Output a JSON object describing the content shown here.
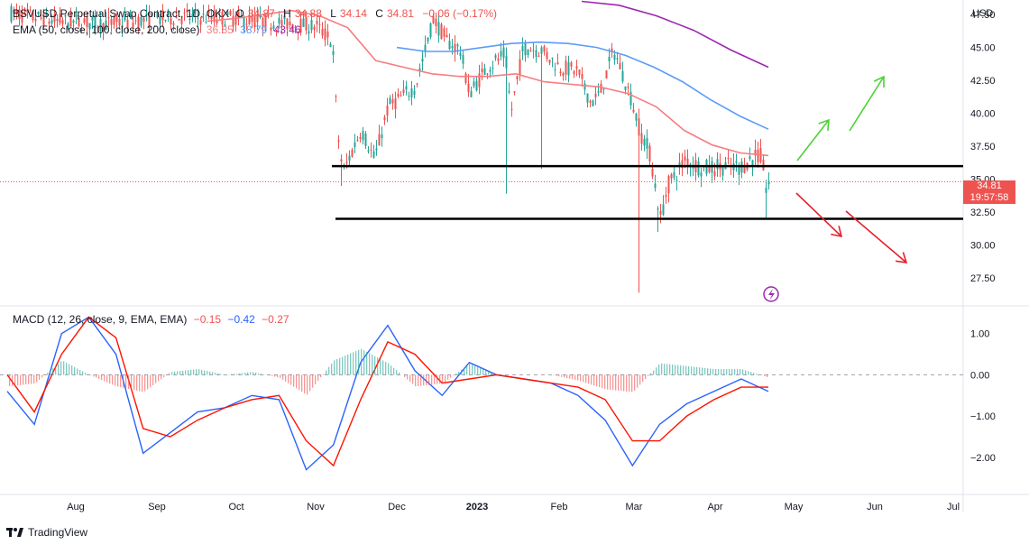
{
  "legend": {
    "symbol": "BSVUSD Perpetual Swap Contract, 1D, OKX",
    "ohlc": {
      "o_label": "O",
      "o": "34.87",
      "h_label": "H",
      "h": "34.88",
      "l_label": "L",
      "l": "34.14",
      "c_label": "C",
      "c": "34.81",
      "change": "−0.06 (−0.17%)"
    },
    "ema_label": "EMA (50, close, 100, close, 200, close)",
    "ema_values": [
      "36.85",
      "38.79",
      "43.46"
    ]
  },
  "macd": {
    "label": "MACD (12, 26, close, 9, EMA, EMA)",
    "values": [
      "−0.15",
      "−0.42",
      "−0.27"
    ]
  },
  "price_tag": {
    "price": "34.81",
    "countdown": "19:57:58"
  },
  "branding": "TradingView",
  "colors": {
    "up": "#26a69a",
    "down": "#ef5350",
    "ema50": "#f77c80",
    "ema100": "#5b9cf6",
    "ema200": "#9c27b0",
    "macd": "#2962ff",
    "signal": "#ff1100",
    "support": "#000000",
    "arrow_up": "#4cd137",
    "arrow_down": "#e6202a"
  },
  "chart_data": [
    {
      "type": "candlestick",
      "y_axis": {
        "unit": "USD",
        "range": [
          25.6,
          48.6
        ],
        "ticks": [
          27.5,
          30,
          32.5,
          35,
          37.5,
          40,
          42.5,
          45,
          47.5
        ],
        "tick_labels": [
          "27.50",
          "30.00",
          "32.50",
          "35.00",
          "37.50",
          "40.00",
          "42.50",
          "45.00",
          "47.50"
        ]
      },
      "x_axis": {
        "labels": [
          "Aug",
          "Sep",
          "Oct",
          "Nov",
          "Dec",
          "2023",
          "Feb",
          "Mar",
          "Apr",
          "May",
          "Jun",
          "Jul"
        ]
      },
      "series": [
        {
          "name": "EMA 50",
          "values": [
            47.0,
            47.2,
            47.5,
            47.8,
            47.4,
            46.5,
            44.0,
            43.5,
            43.0,
            42.8,
            42.8,
            43.0,
            42.4,
            42.2,
            42.0,
            41.5,
            40.5,
            38.7,
            37.6,
            37.0,
            36.8
          ]
        },
        {
          "name": "EMA 100",
          "values": [
            null,
            null,
            null,
            null,
            null,
            null,
            null,
            45.0,
            44.7,
            44.7,
            45.0,
            45.3,
            45.4,
            45.3,
            45.0,
            44.4,
            43.5,
            42.4,
            41.0,
            39.8,
            38.8
          ]
        },
        {
          "name": "EMA 200",
          "values": [
            null,
            null,
            null,
            null,
            null,
            null,
            null,
            null,
            null,
            null,
            null,
            null,
            null,
            null,
            null,
            48.5,
            48.2,
            47.4,
            46.3,
            44.8,
            43.5
          ]
        }
      ],
      "support_levels": [
        36.0,
        32.0
      ],
      "last_price": 34.81
    },
    {
      "type": "macd",
      "y_axis": {
        "range": [
          -2.9,
          1.65
        ],
        "ticks": [
          1.0,
          0.0,
          -1.0,
          -2.0
        ],
        "tick_labels": [
          "1.00",
          "0.00",
          "−1.00",
          "−2.00"
        ]
      },
      "series": [
        {
          "name": "MACD",
          "values": [
            -0.4,
            -1.2,
            1.0,
            1.4,
            0.5,
            -1.9,
            -1.4,
            -0.9,
            -0.8,
            -0.5,
            -0.6,
            -2.3,
            -1.7,
            0.3,
            1.2,
            0.1,
            -0.5,
            0.3,
            0.0,
            -0.1,
            -0.2,
            -0.5,
            -1.1,
            -2.2,
            -1.2,
            -0.7,
            -0.4,
            -0.1,
            -0.4
          ]
        },
        {
          "name": "Signal",
          "values": [
            0.0,
            -0.9,
            0.5,
            1.4,
            0.9,
            -1.3,
            -1.5,
            -1.1,
            -0.8,
            -0.6,
            -0.5,
            -1.6,
            -2.2,
            -0.6,
            0.8,
            0.5,
            -0.2,
            -0.1,
            0.0,
            -0.1,
            -0.2,
            -0.3,
            -0.6,
            -1.6,
            -1.6,
            -1.0,
            -0.6,
            -0.3,
            -0.3
          ]
        }
      ]
    }
  ]
}
